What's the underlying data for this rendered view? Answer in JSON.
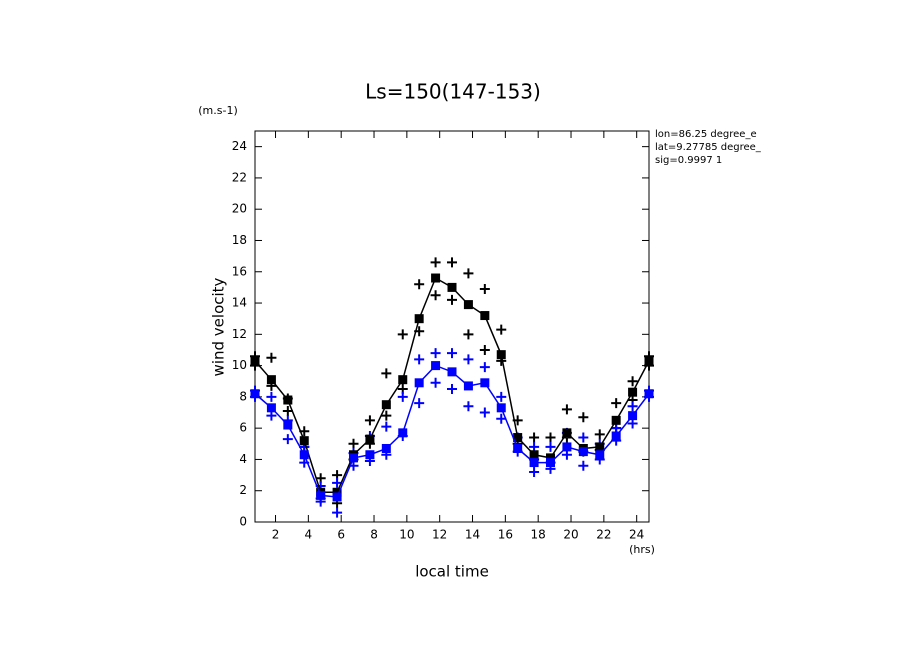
{
  "chart_data": {
    "type": "line",
    "title": "Ls=150(147-153)",
    "y_unit": "(m.s-1)",
    "y_label": "wind velocity",
    "x_label": "local time",
    "x_unit": "(hrs)",
    "annotations": [
      "lon=86.25 degree_e",
      "lat=9.27785 degree_",
      "sig=0.9997 1"
    ],
    "x": [
      0.75,
      1.75,
      2.75,
      3.75,
      4.75,
      5.75,
      6.75,
      7.75,
      8.75,
      9.75,
      10.75,
      11.75,
      12.75,
      13.75,
      14.75,
      15.75,
      16.75,
      17.75,
      18.75,
      19.75,
      20.75,
      21.75,
      22.75,
      23.75,
      24.75
    ],
    "xlim": [
      0.75,
      24.75
    ],
    "xticks": [
      2,
      4,
      6,
      8,
      10,
      12,
      14,
      16,
      18,
      20,
      22,
      24
    ],
    "ylim": [
      0,
      25
    ],
    "yticks": [
      0,
      2,
      4,
      6,
      8,
      10,
      12,
      14,
      16,
      18,
      20,
      22,
      24
    ],
    "series": [
      {
        "color": "#000000",
        "values": [
          10.3,
          9.1,
          7.8,
          5.2,
          1.9,
          1.9,
          4.3,
          5.3,
          7.5,
          9.1,
          13.0,
          15.6,
          15.0,
          13.9,
          13.2,
          10.7,
          5.4,
          4.3,
          4.1,
          5.7,
          4.7,
          4.8,
          6.5,
          8.3,
          10.3
        ]
      },
      {
        "color": "#0000ff",
        "values": [
          8.2,
          7.3,
          6.2,
          4.3,
          1.7,
          1.6,
          4.1,
          4.3,
          4.7,
          5.7,
          8.9,
          10.0,
          9.6,
          8.7,
          8.9,
          7.3,
          4.7,
          3.8,
          3.8,
          4.8,
          4.5,
          4.3,
          5.5,
          6.8,
          8.2
        ]
      }
    ],
    "ensemble": [
      {
        "color": "#000000",
        "values": [
          10.6,
          10.5,
          7.9,
          5.8,
          2.8,
          3.0,
          5.0,
          6.5,
          9.5,
          12.0,
          15.2,
          16.6,
          16.6,
          15.9,
          14.9,
          12.3,
          6.5,
          5.4,
          5.4,
          7.2,
          6.7,
          5.6,
          7.6,
          9.0,
          10.6
        ]
      },
      {
        "color": "#000000",
        "values": [
          10.0,
          8.7,
          7.1,
          4.8,
          1.5,
          1.2,
          4.0,
          5.0,
          6.8,
          8.5,
          12.2,
          14.5,
          14.2,
          12.0,
          11.0,
          10.3,
          5.0,
          4.0,
          3.8,
          5.4,
          4.5,
          4.6,
          6.0,
          7.8,
          10.0
        ]
      },
      {
        "color": "#0000ff",
        "values": [
          8.4,
          8.0,
          6.5,
          4.8,
          2.3,
          2.5,
          4.4,
          5.5,
          6.1,
          8.0,
          10.4,
          10.8,
          10.8,
          10.4,
          9.9,
          8.0,
          5.4,
          4.8,
          4.8,
          5.7,
          5.4,
          5.0,
          6.0,
          7.4,
          8.4
        ]
      },
      {
        "color": "#0000ff",
        "values": [
          8.0,
          6.8,
          5.3,
          3.8,
          1.3,
          0.6,
          3.6,
          3.9,
          4.3,
          5.5,
          7.6,
          8.9,
          8.5,
          7.4,
          7.0,
          6.6,
          4.5,
          3.2,
          3.4,
          4.3,
          3.6,
          4.0,
          5.2,
          6.3,
          8.0
        ]
      }
    ]
  }
}
